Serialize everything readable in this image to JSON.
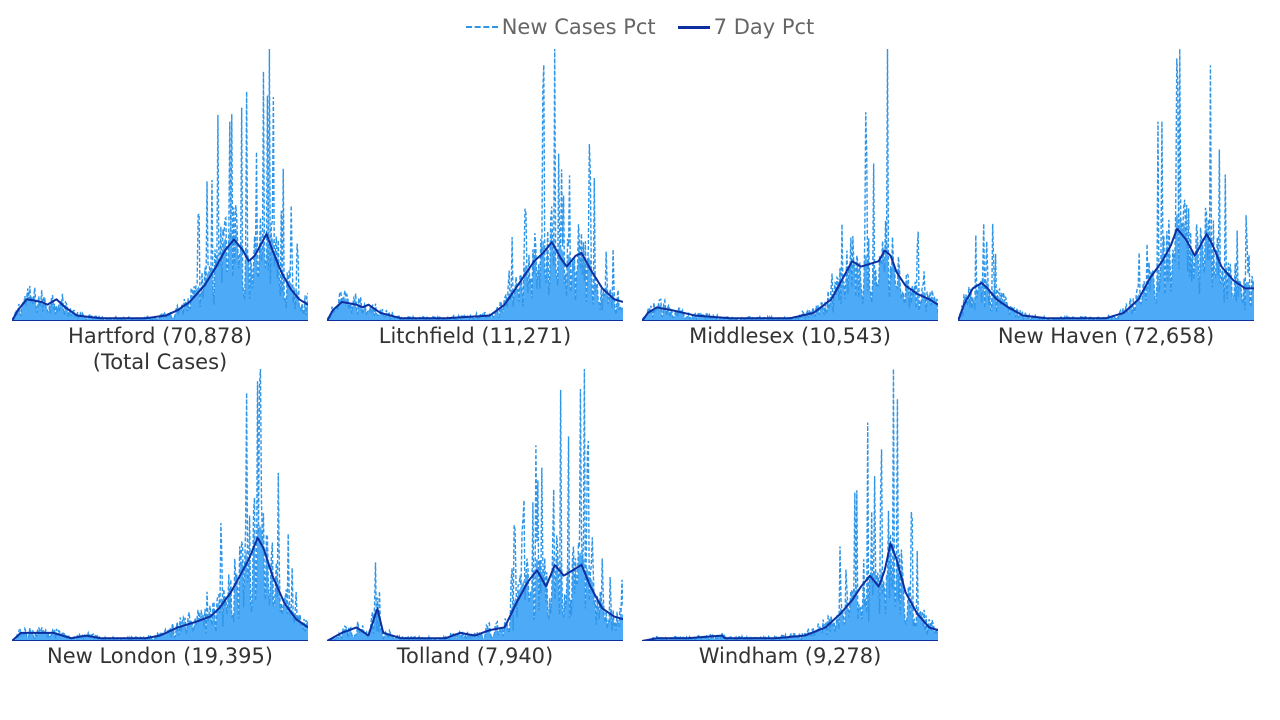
{
  "legend": {
    "position": "top-center",
    "items": [
      {
        "label": "New Cases Pct",
        "style": "dashed",
        "color": "#2e95e8"
      },
      {
        "label": "7 Day Pct",
        "style": "solid",
        "color": "#0d2fa0"
      }
    ]
  },
  "colors": {
    "area_fill": "#4daaf7",
    "new_cases_line": "#2e95e8",
    "seven_day_line": "#0d2fa0",
    "label_text": "#333333",
    "legend_text": "#666666"
  },
  "chart_data": {
    "type": "area",
    "layout": "small-multiples",
    "grid": false,
    "axes_visible": false,
    "series_names": [
      "New Cases Pct",
      "7 Day Pct"
    ],
    "total_label": "(Total Cases)",
    "panels": [
      {
        "label": "Hartford (70,878)",
        "sublabel": "(Total Cases)",
        "total_cases": 70878,
        "peak_new": 1.0,
        "seven_day_points": [
          [
            0,
            0.0
          ],
          [
            0.02,
            0.04
          ],
          [
            0.05,
            0.08
          ],
          [
            0.1,
            0.07
          ],
          [
            0.12,
            0.06
          ],
          [
            0.15,
            0.08
          ],
          [
            0.18,
            0.05
          ],
          [
            0.22,
            0.02
          ],
          [
            0.3,
            0.01
          ],
          [
            0.45,
            0.01
          ],
          [
            0.52,
            0.02
          ],
          [
            0.56,
            0.04
          ],
          [
            0.6,
            0.07
          ],
          [
            0.65,
            0.13
          ],
          [
            0.69,
            0.2
          ],
          [
            0.72,
            0.26
          ],
          [
            0.75,
            0.3
          ],
          [
            0.78,
            0.26
          ],
          [
            0.8,
            0.22
          ],
          [
            0.82,
            0.24
          ],
          [
            0.84,
            0.28
          ],
          [
            0.86,
            0.32
          ],
          [
            0.88,
            0.26
          ],
          [
            0.91,
            0.18
          ],
          [
            0.94,
            0.12
          ],
          [
            0.97,
            0.08
          ],
          [
            1.0,
            0.06
          ]
        ]
      },
      {
        "label": "Litchfield (11,271)",
        "sublabel": "",
        "total_cases": 11271,
        "peak_new": 1.0,
        "seven_day_points": [
          [
            0,
            0.0
          ],
          [
            0.02,
            0.04
          ],
          [
            0.05,
            0.07
          ],
          [
            0.1,
            0.06
          ],
          [
            0.12,
            0.05
          ],
          [
            0.14,
            0.06
          ],
          [
            0.18,
            0.03
          ],
          [
            0.25,
            0.01
          ],
          [
            0.4,
            0.01
          ],
          [
            0.55,
            0.02
          ],
          [
            0.6,
            0.06
          ],
          [
            0.65,
            0.14
          ],
          [
            0.7,
            0.22
          ],
          [
            0.73,
            0.25
          ],
          [
            0.76,
            0.29
          ],
          [
            0.79,
            0.23
          ],
          [
            0.81,
            0.2
          ],
          [
            0.84,
            0.24
          ],
          [
            0.86,
            0.25
          ],
          [
            0.89,
            0.19
          ],
          [
            0.93,
            0.12
          ],
          [
            0.97,
            0.08
          ],
          [
            1.0,
            0.07
          ]
        ]
      },
      {
        "label": "Middlesex (10,543)",
        "sublabel": "",
        "total_cases": 10543,
        "peak_new": 1.0,
        "seven_day_points": [
          [
            0,
            0.0
          ],
          [
            0.02,
            0.03
          ],
          [
            0.05,
            0.05
          ],
          [
            0.1,
            0.04
          ],
          [
            0.14,
            0.03
          ],
          [
            0.18,
            0.02
          ],
          [
            0.3,
            0.01
          ],
          [
            0.5,
            0.01
          ],
          [
            0.58,
            0.03
          ],
          [
            0.64,
            0.08
          ],
          [
            0.68,
            0.16
          ],
          [
            0.71,
            0.22
          ],
          [
            0.74,
            0.2
          ],
          [
            0.77,
            0.21
          ],
          [
            0.8,
            0.22
          ],
          [
            0.82,
            0.26
          ],
          [
            0.84,
            0.24
          ],
          [
            0.86,
            0.18
          ],
          [
            0.89,
            0.13
          ],
          [
            0.93,
            0.1
          ],
          [
            0.97,
            0.08
          ],
          [
            1.0,
            0.06
          ]
        ]
      },
      {
        "label": "New Haven (72,658)",
        "sublabel": "",
        "total_cases": 72658,
        "peak_new": 1.0,
        "seven_day_points": [
          [
            0,
            0.0
          ],
          [
            0.02,
            0.06
          ],
          [
            0.05,
            0.12
          ],
          [
            0.08,
            0.14
          ],
          [
            0.1,
            0.12
          ],
          [
            0.13,
            0.08
          ],
          [
            0.17,
            0.05
          ],
          [
            0.22,
            0.02
          ],
          [
            0.3,
            0.01
          ],
          [
            0.5,
            0.01
          ],
          [
            0.56,
            0.03
          ],
          [
            0.61,
            0.08
          ],
          [
            0.65,
            0.16
          ],
          [
            0.69,
            0.22
          ],
          [
            0.72,
            0.28
          ],
          [
            0.74,
            0.34
          ],
          [
            0.77,
            0.3
          ],
          [
            0.8,
            0.24
          ],
          [
            0.82,
            0.28
          ],
          [
            0.84,
            0.32
          ],
          [
            0.86,
            0.28
          ],
          [
            0.89,
            0.2
          ],
          [
            0.93,
            0.15
          ],
          [
            0.97,
            0.12
          ],
          [
            1.0,
            0.12
          ]
        ]
      },
      {
        "label": "New London (19,395)",
        "sublabel": "",
        "total_cases": 19395,
        "peak_new": 1.0,
        "seven_day_points": [
          [
            0,
            0.0
          ],
          [
            0.03,
            0.03
          ],
          [
            0.08,
            0.03
          ],
          [
            0.14,
            0.03
          ],
          [
            0.2,
            0.01
          ],
          [
            0.25,
            0.02
          ],
          [
            0.3,
            0.01
          ],
          [
            0.45,
            0.01
          ],
          [
            0.5,
            0.02
          ],
          [
            0.56,
            0.05
          ],
          [
            0.62,
            0.07
          ],
          [
            0.67,
            0.09
          ],
          [
            0.7,
            0.12
          ],
          [
            0.74,
            0.18
          ],
          [
            0.77,
            0.24
          ],
          [
            0.8,
            0.3
          ],
          [
            0.83,
            0.38
          ],
          [
            0.85,
            0.34
          ],
          [
            0.88,
            0.24
          ],
          [
            0.92,
            0.14
          ],
          [
            0.96,
            0.08
          ],
          [
            1.0,
            0.05
          ]
        ]
      },
      {
        "label": "Tolland (7,940)",
        "sublabel": "",
        "total_cases": 7940,
        "peak_new": 1.0,
        "seven_day_points": [
          [
            0,
            0.0
          ],
          [
            0.05,
            0.03
          ],
          [
            0.1,
            0.05
          ],
          [
            0.14,
            0.02
          ],
          [
            0.17,
            0.12
          ],
          [
            0.19,
            0.03
          ],
          [
            0.25,
            0.01
          ],
          [
            0.4,
            0.01
          ],
          [
            0.45,
            0.03
          ],
          [
            0.5,
            0.02
          ],
          [
            0.55,
            0.04
          ],
          [
            0.6,
            0.05
          ],
          [
            0.64,
            0.14
          ],
          [
            0.68,
            0.22
          ],
          [
            0.71,
            0.26
          ],
          [
            0.74,
            0.2
          ],
          [
            0.77,
            0.28
          ],
          [
            0.8,
            0.24
          ],
          [
            0.83,
            0.26
          ],
          [
            0.86,
            0.28
          ],
          [
            0.89,
            0.2
          ],
          [
            0.93,
            0.12
          ],
          [
            0.97,
            0.09
          ],
          [
            1.0,
            0.08
          ]
        ]
      },
      {
        "label": "Windham (9,278)",
        "sublabel": "",
        "total_cases": 9278,
        "peak_new": 1.0,
        "seven_day_points": [
          [
            0,
            0.0
          ],
          [
            0.05,
            0.01
          ],
          [
            0.15,
            0.01
          ],
          [
            0.27,
            0.02
          ],
          [
            0.28,
            0.01
          ],
          [
            0.45,
            0.01
          ],
          [
            0.55,
            0.02
          ],
          [
            0.62,
            0.05
          ],
          [
            0.67,
            0.1
          ],
          [
            0.71,
            0.15
          ],
          [
            0.74,
            0.2
          ],
          [
            0.77,
            0.24
          ],
          [
            0.8,
            0.2
          ],
          [
            0.82,
            0.26
          ],
          [
            0.84,
            0.36
          ],
          [
            0.86,
            0.3
          ],
          [
            0.89,
            0.18
          ],
          [
            0.93,
            0.1
          ],
          [
            0.97,
            0.05
          ],
          [
            1.0,
            0.04
          ]
        ]
      }
    ]
  }
}
